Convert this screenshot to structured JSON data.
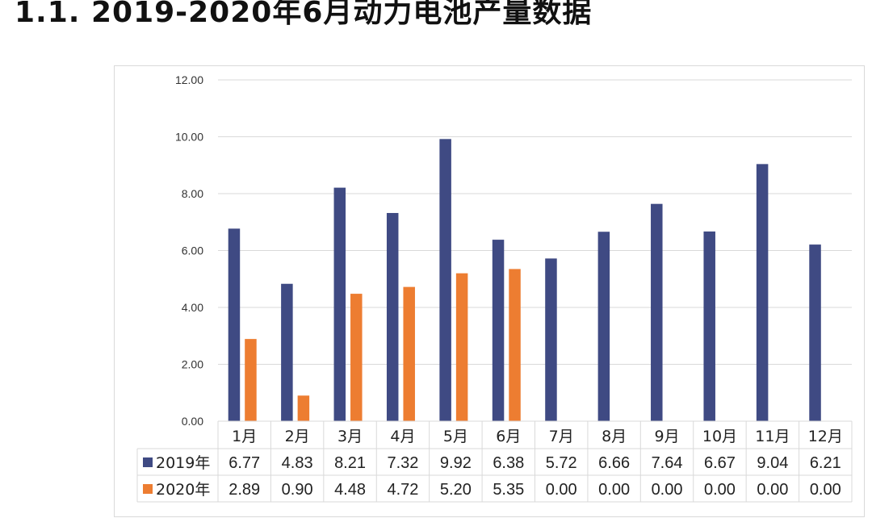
{
  "heading": "1.1. 2019-2020年6月动力电池产量数据",
  "chart_data": {
    "type": "bar",
    "title": "",
    "xlabel": "",
    "ylabel": "",
    "ylim": [
      0,
      12
    ],
    "y_ticks": [
      "0.00",
      "2.00",
      "4.00",
      "6.00",
      "8.00",
      "10.00",
      "12.00"
    ],
    "categories": [
      "1月",
      "2月",
      "3月",
      "4月",
      "5月",
      "6月",
      "7月",
      "8月",
      "9月",
      "10月",
      "11月",
      "12月"
    ],
    "grid": true,
    "legend": "data-table-rows",
    "series": [
      {
        "name": "2019年",
        "color": "#3f4a83",
        "values": [
          6.77,
          4.83,
          8.21,
          7.32,
          9.92,
          6.38,
          5.72,
          6.66,
          7.64,
          6.67,
          9.04,
          6.21
        ],
        "labels": [
          "6.77",
          "4.83",
          "8.21",
          "7.32",
          "9.92",
          "6.38",
          "5.72",
          "6.66",
          "7.64",
          "6.67",
          "9.04",
          "6.21"
        ]
      },
      {
        "name": "2020年",
        "color": "#ed7d31",
        "values": [
          2.89,
          0.9,
          4.48,
          4.72,
          5.2,
          5.35,
          0.0,
          0.0,
          0.0,
          0.0,
          0.0,
          0.0
        ],
        "labels": [
          "2.89",
          "0.90",
          "4.48",
          "4.72",
          "5.20",
          "5.35",
          "0.00",
          "0.00",
          "0.00",
          "0.00",
          "0.00",
          "0.00"
        ]
      }
    ]
  }
}
